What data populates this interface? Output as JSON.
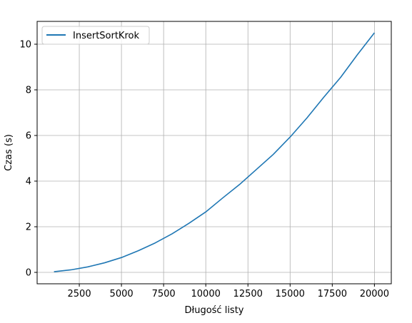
{
  "chart_data": {
    "type": "line",
    "title": "",
    "xlabel": "Długość listy",
    "ylabel": "Czas (s)",
    "xlim": [
      0,
      21000
    ],
    "ylim": [
      -0.5,
      11
    ],
    "xticks": [
      2500,
      5000,
      7500,
      10000,
      12500,
      15000,
      17500,
      20000
    ],
    "yticks": [
      0,
      2,
      4,
      6,
      8,
      10
    ],
    "grid": true,
    "legend": "top-left",
    "x": [
      1000,
      2000,
      3000,
      4000,
      5000,
      6000,
      7000,
      8000,
      9000,
      10000,
      11000,
      12000,
      13000,
      14000,
      15000,
      16000,
      17000,
      18000,
      19000,
      20000
    ],
    "series": [
      {
        "name": "InsertSortKrok",
        "color": "#1f77b4",
        "values": [
          0.03,
          0.11,
          0.24,
          0.42,
          0.65,
          0.95,
          1.29,
          1.69,
          2.15,
          2.65,
          3.26,
          3.85,
          4.51,
          5.17,
          5.93,
          6.77,
          7.68,
          8.55,
          9.55,
          10.5
        ]
      }
    ]
  }
}
